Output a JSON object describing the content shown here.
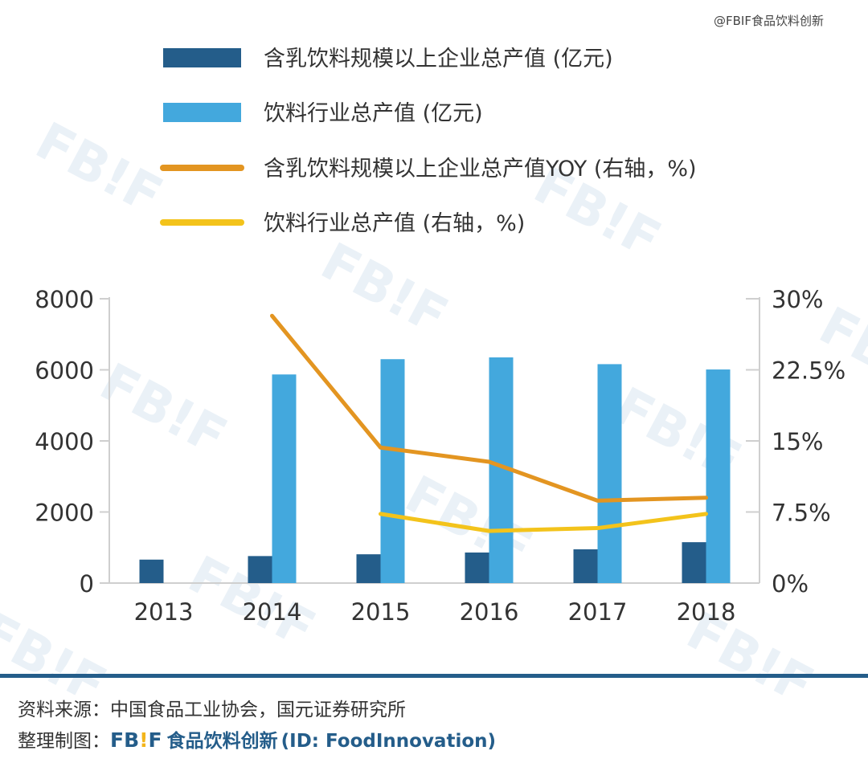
{
  "credit": "@FBIF食品饮料创新",
  "watermark": {
    "text": "FB!F",
    "color": "#eaf1f7"
  },
  "colors": {
    "bar_dark": "#245d8a",
    "bar_light": "#43a8dd",
    "line_orange": "#e39521",
    "line_yellow": "#f3c31b",
    "axis": "#cfcfcf",
    "text": "#333333",
    "footer_rule": "#245d8a",
    "brand_yellow": "#f3b51b"
  },
  "chart_data": {
    "type": "bar",
    "categories": [
      "2013",
      "2014",
      "2015",
      "2016",
      "2017",
      "2018"
    ],
    "series": [
      {
        "name": "含乳饮料规模以上企业总产值 (亿元)",
        "type": "bar",
        "axis": "left",
        "color": "#245d8a",
        "values": [
          660,
          760,
          810,
          860,
          950,
          1150
        ]
      },
      {
        "name": "饮料行业总产值 (亿元)",
        "type": "bar",
        "axis": "left",
        "color": "#43a8dd",
        "values": [
          null,
          5870,
          6300,
          6350,
          6160,
          6010
        ]
      },
      {
        "name": "含乳饮料规模以上企业总产值YOY (右轴，%)",
        "type": "line",
        "axis": "right",
        "color": "#e39521",
        "values": [
          null,
          28.2,
          14.3,
          12.8,
          8.7,
          9.0
        ]
      },
      {
        "name": "饮料行业总产值 (右轴，%)",
        "type": "line",
        "axis": "right",
        "color": "#f3c31b",
        "values": [
          null,
          null,
          7.3,
          5.5,
          5.8,
          7.3
        ]
      }
    ],
    "y_left": {
      "range": [
        0,
        8000
      ],
      "ticks": [
        "0",
        "2000",
        "4000",
        "6000",
        "8000"
      ],
      "tick_values": [
        0,
        2000,
        4000,
        6000,
        8000
      ]
    },
    "y_right": {
      "range": [
        0,
        30
      ],
      "ticks": [
        "0%",
        "7.5%",
        "15%",
        "22.5%",
        "30%"
      ],
      "tick_values": [
        0,
        7.5,
        15,
        22.5,
        30
      ]
    },
    "grid": false,
    "legend_position": "top"
  },
  "footer": {
    "source_label": "资料来源：",
    "source_text": "中国食品工业协会，国元证券研究所",
    "made_label": "整理制图：",
    "brand_fb": "FB",
    "brand_bang": "!",
    "brand_f": "F",
    "brand_name": "食品饮料创新",
    "brand_id": "(ID: FoodInnovation)"
  }
}
